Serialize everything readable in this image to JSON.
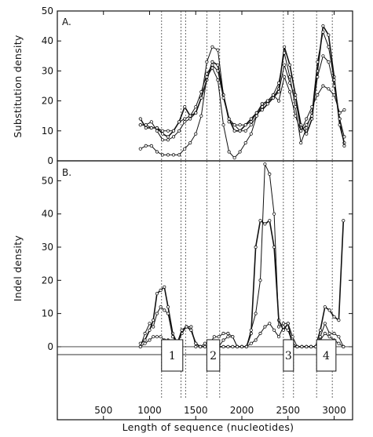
{
  "chart_data": {
    "type": "line",
    "xlabel": "Length of sequence (nucleotides)",
    "xlim": [
      0,
      3200
    ],
    "xticks": [
      500,
      1000,
      1500,
      2000,
      2500,
      3000
    ],
    "region_boundaries": [
      1130,
      1340,
      1390,
      1620,
      1760,
      2450,
      2560,
      2810,
      2980
    ],
    "regions": [
      {
        "label": "1",
        "start": 1130,
        "end": 1360
      },
      {
        "label": "2",
        "start": 1620,
        "end": 1760
      },
      {
        "label": "3",
        "start": 2450,
        "end": 2560
      },
      {
        "label": "4",
        "start": 2810,
        "end": 3020
      }
    ],
    "panels": [
      {
        "letter": "A.",
        "ylabel": "Substitution density",
        "ylim": [
          0,
          50
        ],
        "yticks": [
          0,
          10,
          20,
          30,
          40,
          50
        ],
        "series": [
          {
            "marker": "dot",
            "x": [
              900,
              960,
              1020,
              1080,
              1140,
              1200,
              1260,
              1320,
              1380,
              1440,
              1500,
              1560,
              1620,
              1680,
              1740,
              1800,
              1860,
              1920,
              1980,
              2040,
              2100,
              2160,
              2220,
              2280,
              2340,
              2400,
              2460,
              2520,
              2580,
              2640,
              2700,
              2760,
              2820,
              2880,
              2940,
              3000,
              3060,
              3110
            ],
            "y": [
              14,
              11,
              11,
              11,
              9,
              8,
              10,
              13,
              18,
              15,
              16,
              21,
              27,
              33,
              32,
              22,
              14,
              10,
              10,
              12,
              14,
              16,
              17,
              19,
              21,
              24,
              38,
              32,
              22,
              12,
              9,
              14,
              30,
              45,
              42,
              28,
              12,
              6
            ]
          },
          {
            "marker": "dot",
            "x": [
              900,
              960,
              1020,
              1080,
              1140,
              1200,
              1260,
              1320,
              1380,
              1440,
              1500,
              1560,
              1620,
              1680,
              1740,
              1800,
              1860,
              1920,
              1980,
              2040,
              2100,
              2160,
              2220,
              2280,
              2340,
              2400,
              2460,
              2520,
              2580,
              2640,
              2700,
              2760,
              2820,
              2880,
              2940,
              3000,
              3060,
              3110
            ],
            "y": [
              12,
              12,
              13,
              10,
              7,
              7,
              8,
              10,
              13,
              14,
              16,
              21,
              33,
              38,
              37,
              22,
              13,
              12,
              10,
              10,
              12,
              15,
              18,
              20,
              22,
              26,
              36,
              28,
              18,
              6,
              11,
              16,
              33,
              43,
              38,
              27,
              14,
              5
            ]
          },
          {
            "marker": "dot",
            "x": [
              900,
              960,
              1020,
              1080,
              1140,
              1200,
              1260,
              1320,
              1380,
              1440,
              1500,
              1560,
              1620,
              1680,
              1740,
              1800,
              1860,
              1920,
              1980,
              2040,
              2100,
              2160,
              2220,
              2280,
              2340,
              2400,
              2460,
              2520,
              2580,
              2640,
              2700,
              2760,
              2820,
              2880,
              2940,
              3000,
              3060,
              3110
            ],
            "y": [
              12,
              12,
              11,
              11,
              10,
              10,
              10,
              13,
              14,
              15,
              18,
              23,
              29,
              32,
              30,
              21,
              14,
              12,
              12,
              12,
              13,
              16,
              19,
              20,
              21,
              23,
              32,
              26,
              21,
              10,
              12,
              15,
              28,
              35,
              33,
              25,
              14,
              8
            ]
          },
          {
            "marker": "dot",
            "x": [
              900,
              960,
              1020,
              1080,
              1140,
              1200,
              1260,
              1320,
              1380,
              1440,
              1500,
              1560,
              1620,
              1680,
              1740,
              1800,
              1860,
              1920,
              1980,
              2040,
              2100,
              2160,
              2220,
              2280,
              2340,
              2400,
              2460,
              2520,
              2580,
              2640,
              2700,
              2760,
              2820,
              2880,
              2940,
              3000,
              3060,
              3110
            ],
            "y": [
              4,
              5,
              5,
              3,
              2,
              2,
              2,
              2,
              4,
              6,
              9,
              15,
              28,
              31,
              27,
              12,
              3,
              1,
              3,
              6,
              9,
              15,
              19,
              20,
              22,
              20,
              28,
              23,
              15,
              10,
              14,
              18,
              22,
              25,
              24,
              22,
              16,
              17
            ]
          }
        ]
      },
      {
        "letter": "B.",
        "ylabel": "Indel density",
        "ylim": [
          -22,
          56
        ],
        "yticks": [
          0,
          10,
          20,
          30,
          40,
          50
        ],
        "series": [
          {
            "marker": "dot",
            "x": [
              900,
              950,
              1000,
              1040,
              1080,
              1120,
              1160,
              1200,
              1250,
              1300,
              1350,
              1400,
              1450,
              1500,
              1550,
              1600,
              1650,
              1700,
              1750,
              1800,
              1850,
              1900,
              1950,
              2000,
              2050,
              2100,
              2150,
              2200,
              2250,
              2300,
              2350,
              2400,
              2450,
              2500,
              2550,
              2600,
              2650,
              2700,
              2750,
              2800,
              2850,
              2900,
              2950,
              3000,
              3050,
              3100
            ],
            "y": [
              1,
              2,
              5,
              8,
              16,
              17,
              18,
              12,
              4,
              1,
              5,
              6,
              5,
              1,
              0,
              0,
              0,
              0,
              0,
              0,
              0,
              0,
              0,
              0,
              0,
              4,
              30,
              38,
              37,
              38,
              30,
              8,
              5,
              7,
              0,
              0,
              0,
              0,
              0,
              0,
              5,
              12,
              11,
              9,
              8,
              38
            ]
          },
          {
            "marker": "dot",
            "x": [
              900,
              950,
              1000,
              1040,
              1080,
              1120,
              1160,
              1200,
              1250,
              1300,
              1350,
              1400,
              1450,
              1500,
              1550,
              1600,
              1650,
              1700,
              1750,
              1800,
              1850,
              1900,
              1950,
              2000,
              2050,
              2100,
              2150,
              2200,
              2250,
              2300,
              2350,
              2400,
              2450,
              2500,
              2550,
              2600,
              2650,
              2700,
              2750,
              2800,
              2850,
              2900,
              2950,
              3000,
              3050,
              3100
            ],
            "y": [
              0,
              4,
              7,
              6,
              10,
              12,
              11,
              10,
              3,
              1,
              4,
              6,
              6,
              0,
              0,
              0,
              0,
              0,
              0,
              2,
              3,
              3,
              0,
              0,
              0,
              5,
              10,
              20,
              55,
              52,
              40,
              6,
              7,
              7,
              3,
              0,
              0,
              0,
              0,
              0,
              3,
              7,
              4,
              4,
              3,
              0
            ]
          },
          {
            "marker": "dot",
            "x": [
              900,
              950,
              1000,
              1040,
              1080,
              1120,
              1160,
              1200,
              1250,
              1300,
              1350,
              1400,
              1450,
              1500,
              1550,
              1600,
              1650,
              1700,
              1750,
              1800,
              1850,
              1900,
              1950,
              2000,
              2050,
              2100,
              2150,
              2200,
              2250,
              2300,
              2350,
              2400,
              2450,
              2500,
              2550,
              2600,
              2650,
              2700,
              2750,
              2800,
              2850,
              2900,
              2950,
              3000,
              3050,
              3100
            ],
            "y": [
              0,
              1,
              2,
              3,
              3,
              3,
              2,
              2,
              1,
              0,
              5,
              6,
              5,
              1,
              0,
              1,
              1,
              3,
              3,
              4,
              4,
              3,
              0,
              0,
              0,
              1,
              2,
              4,
              6,
              7,
              5,
              3,
              6,
              5,
              1,
              0,
              0,
              0,
              0,
              0,
              2,
              4,
              3,
              2,
              1,
              0
            ]
          }
        ]
      }
    ]
  }
}
